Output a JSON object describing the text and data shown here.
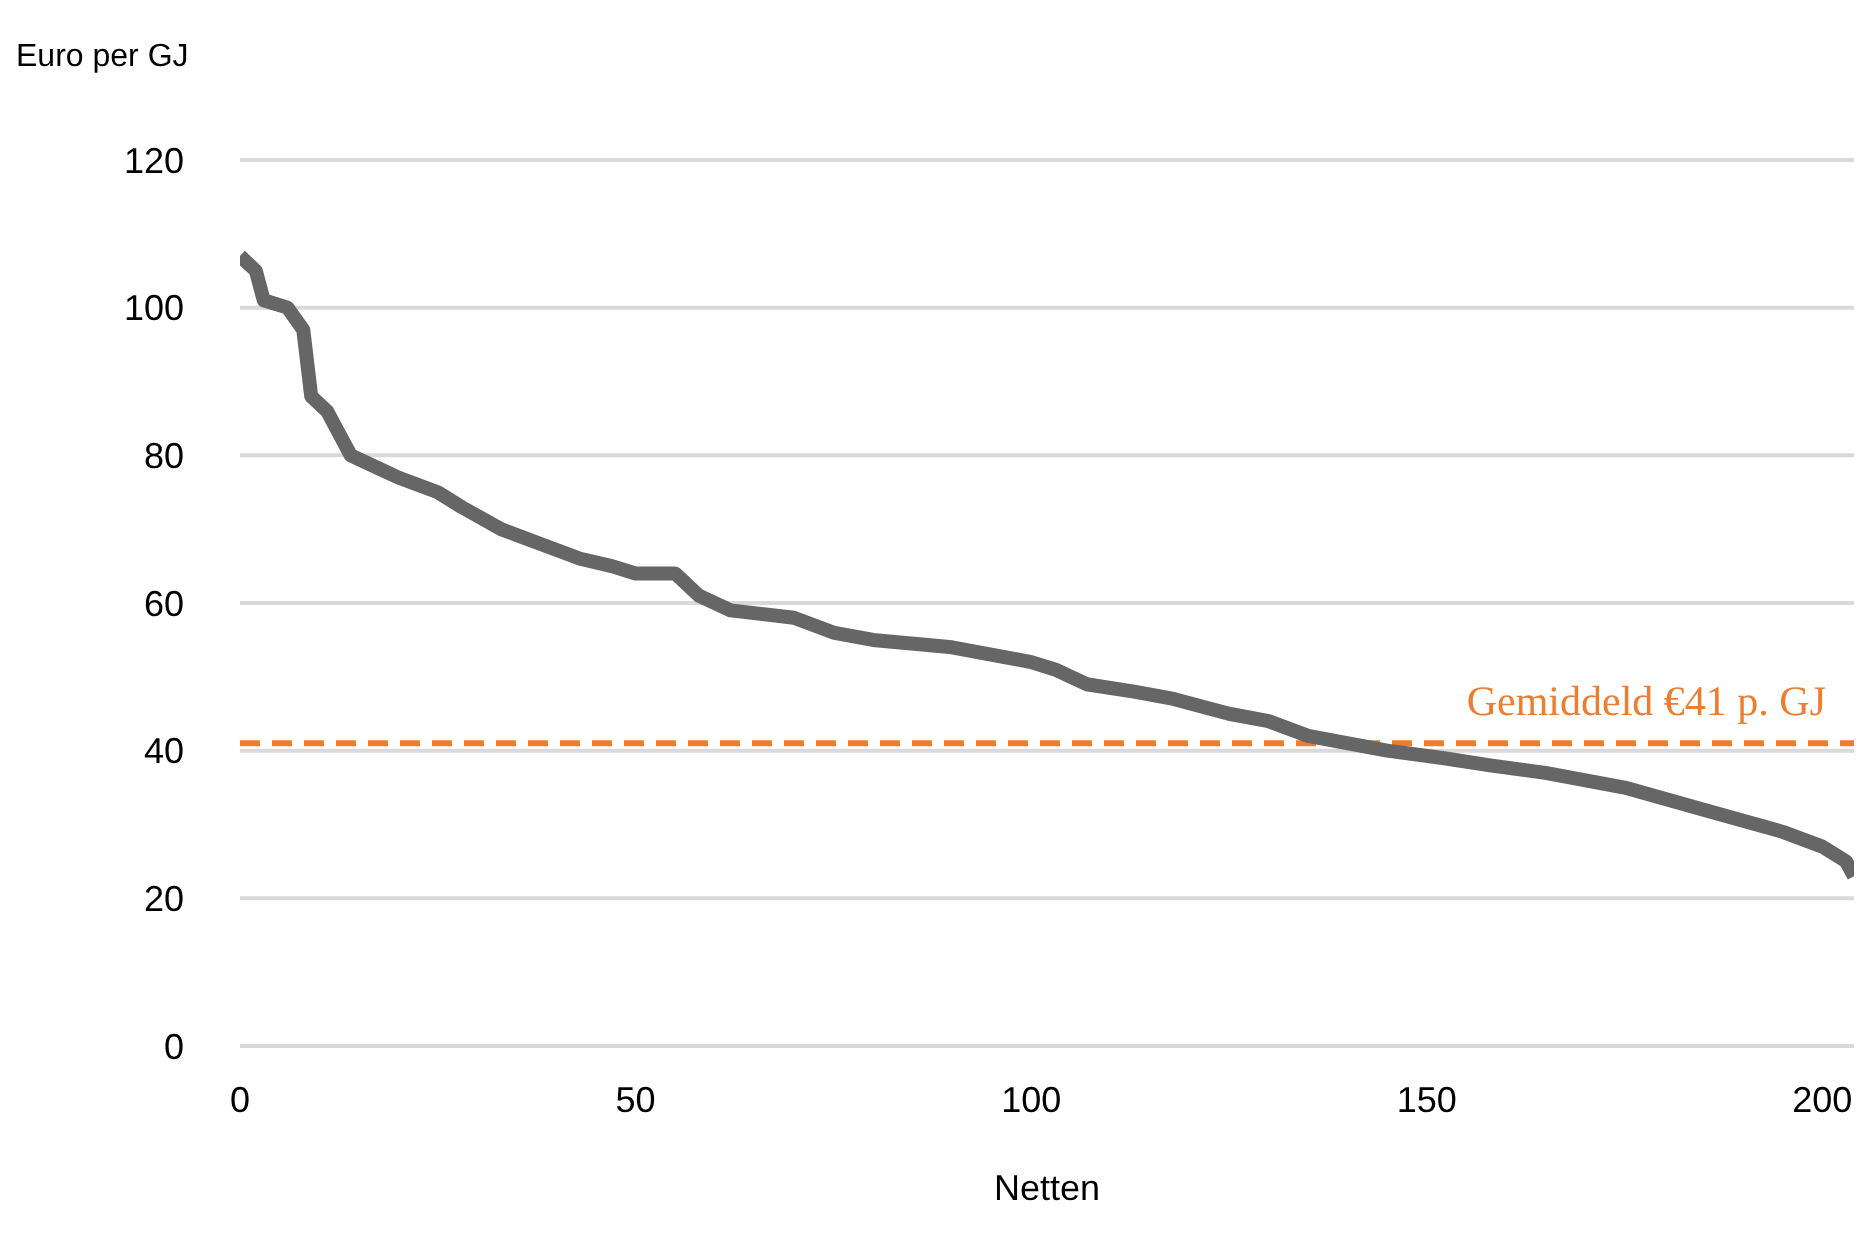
{
  "chart_data": {
    "type": "line",
    "ylabel": "Euro per GJ",
    "xlabel": "Netten",
    "xlim": [
      0,
      204
    ],
    "xticks": [
      0,
      50,
      100,
      150,
      200
    ],
    "ylim": [
      0,
      120
    ],
    "yticks": [
      0,
      20,
      40,
      60,
      80,
      100,
      120
    ],
    "grid": "y",
    "marker": "none",
    "line_style": "solid",
    "series": [
      {
        "color": "#666666",
        "x": [
          0,
          2,
          3,
          6,
          8,
          9,
          11,
          14,
          18,
          20,
          25,
          28,
          33,
          38,
          43,
          47,
          50,
          55,
          58,
          62,
          70,
          75,
          80,
          90,
          100,
          103,
          107,
          113,
          118,
          125,
          130,
          135,
          145,
          152,
          158,
          165,
          175,
          185,
          195,
          200,
          203,
          204
        ],
        "values": [
          107,
          105,
          101,
          100,
          97,
          88,
          86,
          80,
          78,
          77,
          75,
          73,
          70,
          68,
          66,
          65,
          64,
          64,
          61,
          59,
          58,
          56,
          55,
          54,
          52,
          51,
          49,
          48,
          47,
          45,
          44,
          42,
          40,
          39,
          38,
          37,
          35,
          32,
          29,
          27,
          25,
          23
        ]
      }
    ],
    "ref_lines": [
      {
        "axis": "y",
        "value": 41,
        "label": "Gemiddeld €41 p. GJ",
        "color": "#ed7d31",
        "line_style": "dashed"
      }
    ]
  }
}
